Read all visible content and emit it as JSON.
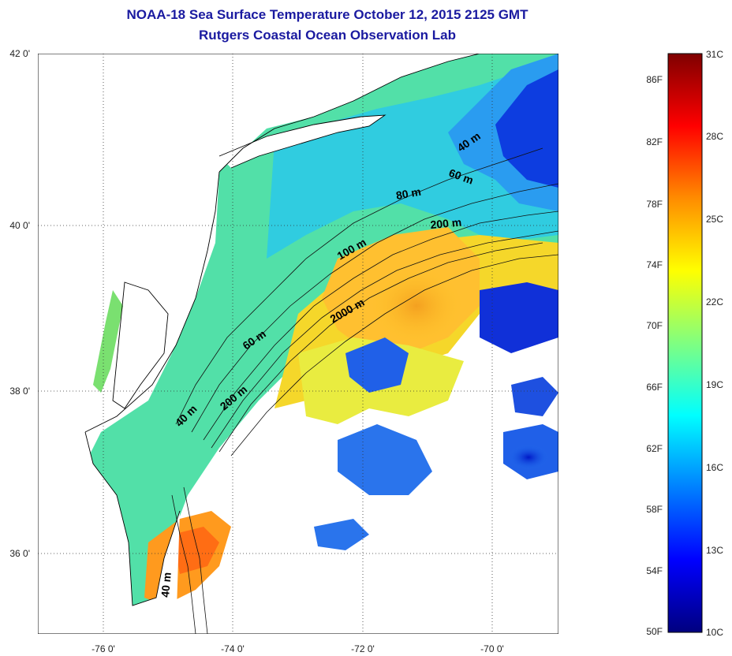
{
  "header": {
    "title": "NOAA-18 Sea Surface Temperature October 12, 2015 2125 GMT",
    "subtitle": "Rutgers Coastal Ocean Observation Lab"
  },
  "map": {
    "lat_labels": [
      "42 0'",
      "40 0'",
      "38 0'",
      "36 0'"
    ],
    "lon_labels": [
      "-76 0'",
      "-74 0'",
      "-72 0'",
      "-70 0'"
    ],
    "isobath_labels": [
      "40 m",
      "60 m",
      "80 m",
      "200 m",
      "100 m",
      "2000 m",
      "60 m",
      "200 m",
      "40 m",
      "40 m"
    ],
    "colors": {
      "land": "#ffffff",
      "coastline": "#000000",
      "graticule": "#000000"
    }
  },
  "colorbar": {
    "f_labels": [
      "86F",
      "82F",
      "78F",
      "74F",
      "70F",
      "66F",
      "62F",
      "58F",
      "54F",
      "50F"
    ],
    "c_labels": [
      "31C",
      "28C",
      "25C",
      "22C",
      "19C",
      "16C",
      "13C",
      "10C"
    ],
    "gradient_colors": [
      "#7f0000",
      "#ff0000",
      "#ff8c00",
      "#ffff00",
      "#80ff80",
      "#00ffff",
      "#0080ff",
      "#0000ff",
      "#00007f"
    ]
  }
}
